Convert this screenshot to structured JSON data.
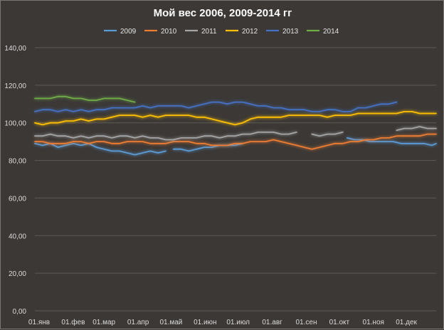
{
  "chart_data": {
    "type": "line",
    "title": "Мой вес 2006, 2009-2014 гг",
    "xlabel": "",
    "ylabel": "",
    "ylim": [
      0,
      140
    ],
    "yticks": [
      "0,00",
      "20,00",
      "40,00",
      "60,00",
      "80,00",
      "100,00",
      "120,00",
      "140,00"
    ],
    "ytick_values": [
      0,
      20,
      40,
      60,
      80,
      100,
      120,
      140
    ],
    "x_unit": "day of year",
    "xlim": [
      1,
      366
    ],
    "xticks": [
      {
        "label": "01.янв",
        "day": 1
      },
      {
        "label": "01.фев",
        "day": 32
      },
      {
        "label": "01.мар",
        "day": 60
      },
      {
        "label": "01.апр",
        "day": 91
      },
      {
        "label": "01.май",
        "day": 121
      },
      {
        "label": "01.июн",
        "day": 152
      },
      {
        "label": "01.июл",
        "day": 182
      },
      {
        "label": "01.авг",
        "day": 213
      },
      {
        "label": "01.сен",
        "day": 244
      },
      {
        "label": "01.окт",
        "day": 274
      },
      {
        "label": "01.ноя",
        "day": 305
      },
      {
        "label": "01.дек",
        "day": 335
      }
    ],
    "legend": "top",
    "grid": true,
    "series": [
      {
        "name": "2009",
        "color": "#5b9bd5",
        "x": [
          1,
          8,
          15,
          22,
          29,
          36,
          43,
          50,
          57,
          64,
          71,
          78,
          85,
          92,
          99,
          106,
          113,
          120
        ],
        "y": [
          89,
          88,
          89,
          87,
          88,
          89,
          88,
          89,
          87,
          86,
          85,
          85,
          84,
          83,
          84,
          85,
          84,
          85
        ],
        "gaps_after": []
      },
      {
        "name": "2009b",
        "legend": false,
        "color": "#5b9bd5",
        "x": [
          127,
          134,
          141,
          148,
          155,
          162,
          169,
          176,
          183,
          190
        ],
        "y": [
          86,
          86,
          85,
          86,
          87,
          87,
          88,
          88,
          88,
          89
        ]
      },
      {
        "name": "2009c",
        "legend": false,
        "color": "#5b9bd5",
        "x": [
          285,
          292,
          299,
          306,
          313,
          320,
          327,
          334,
          341,
          348,
          355,
          362,
          366
        ],
        "y": [
          92,
          91,
          91,
          90,
          90,
          90,
          90,
          89,
          89,
          89,
          89,
          88,
          89
        ]
      },
      {
        "name": "2010",
        "color": "#ed7d31",
        "x": [
          1,
          8,
          15,
          22,
          29,
          36,
          43,
          50,
          57,
          64,
          71,
          78,
          85,
          92,
          99,
          106,
          113,
          120,
          127,
          134,
          141,
          148,
          155,
          162,
          169,
          176,
          183,
          190,
          197,
          204,
          211,
          218,
          225,
          232,
          239,
          246,
          253,
          260,
          267,
          274,
          281,
          288,
          295,
          302,
          309,
          316,
          323,
          330,
          337,
          344,
          351,
          358,
          366
        ],
        "y": [
          90,
          90,
          89,
          89,
          89,
          90,
          90,
          89,
          90,
          90,
          89,
          89,
          90,
          90,
          90,
          89,
          89,
          89,
          90,
          90,
          90,
          89,
          89,
          88,
          88,
          88,
          89,
          89,
          90,
          90,
          90,
          91,
          90,
          89,
          88,
          87,
          86,
          87,
          88,
          89,
          89,
          90,
          90,
          91,
          91,
          92,
          92,
          93,
          93,
          93,
          93,
          94,
          94
        ]
      },
      {
        "name": "2011",
        "color": "#a5a5a5",
        "x": [
          1,
          8,
          15,
          22,
          29,
          36,
          43,
          50,
          57,
          64,
          71,
          78,
          85,
          92,
          99,
          106,
          113,
          120,
          127,
          134,
          141,
          148,
          155,
          162,
          169,
          176,
          183,
          190,
          197,
          204,
          211,
          218,
          225,
          232,
          239
        ],
        "y": [
          93,
          93,
          94,
          93,
          93,
          92,
          93,
          92,
          93,
          93,
          92,
          93,
          93,
          92,
          93,
          92,
          92,
          91,
          91,
          92,
          92,
          92,
          93,
          93,
          92,
          93,
          93,
          94,
          94,
          95,
          95,
          95,
          94,
          94,
          95
        ]
      },
      {
        "name": "2011b",
        "legend": false,
        "color": "#a5a5a5",
        "x": [
          253,
          260,
          267,
          274,
          281
        ],
        "y": [
          94,
          93,
          94,
          94,
          95
        ]
      },
      {
        "name": "2011c",
        "legend": false,
        "color": "#a5a5a5",
        "x": [
          330,
          337,
          344,
          351,
          358,
          366
        ],
        "y": [
          96,
          97,
          97,
          98,
          97,
          97
        ]
      },
      {
        "name": "2012",
        "color": "#ffc000",
        "x": [
          1,
          8,
          15,
          22,
          29,
          36,
          43,
          50,
          57,
          64,
          71,
          78,
          85,
          92,
          99,
          106,
          113,
          120,
          127,
          134,
          141,
          148,
          155,
          162,
          169,
          176,
          183,
          190,
          197,
          204,
          211,
          218,
          225,
          232,
          239,
          246,
          253,
          260,
          267,
          274,
          281,
          288,
          295,
          302,
          309,
          316,
          323,
          330,
          337,
          344,
          351,
          358,
          366
        ],
        "y": [
          100,
          99,
          100,
          100,
          101,
          101,
          102,
          101,
          102,
          102,
          103,
          104,
          104,
          104,
          103,
          104,
          103,
          104,
          104,
          104,
          104,
          103,
          103,
          102,
          101,
          100,
          99,
          100,
          102,
          103,
          103,
          103,
          103,
          104,
          104,
          104,
          104,
          104,
          103,
          104,
          104,
          104,
          105,
          105,
          105,
          105,
          105,
          105,
          106,
          106,
          105,
          105,
          105
        ]
      },
      {
        "name": "2013",
        "color": "#4472c4",
        "x": [
          1,
          8,
          15,
          22,
          29,
          36,
          43,
          50,
          57,
          64,
          71,
          78,
          85,
          92,
          99,
          106,
          113,
          120,
          127,
          134,
          141,
          148,
          155,
          162,
          169,
          176,
          183,
          190,
          197,
          204,
          211,
          218,
          225,
          232,
          239,
          246,
          253,
          260,
          267,
          274,
          281,
          288,
          295,
          302,
          309,
          316,
          323,
          330
        ],
        "y": [
          106,
          107,
          107,
          106,
          107,
          106,
          107,
          106,
          107,
          107,
          108,
          108,
          108,
          108,
          109,
          108,
          109,
          109,
          109,
          109,
          108,
          109,
          110,
          111,
          111,
          110,
          111,
          111,
          110,
          109,
          109,
          108,
          108,
          107,
          107,
          107,
          106,
          106,
          107,
          107,
          106,
          106,
          108,
          108,
          109,
          110,
          110,
          111
        ]
      },
      {
        "name": "2014",
        "color": "#70ad47",
        "x": [
          1,
          8,
          15,
          22,
          29,
          36,
          43,
          50,
          57,
          64,
          71,
          78,
          85,
          92
        ],
        "y": [
          113,
          113,
          113,
          114,
          114,
          113,
          113,
          112,
          112,
          113,
          113,
          113,
          112,
          111
        ]
      }
    ]
  }
}
